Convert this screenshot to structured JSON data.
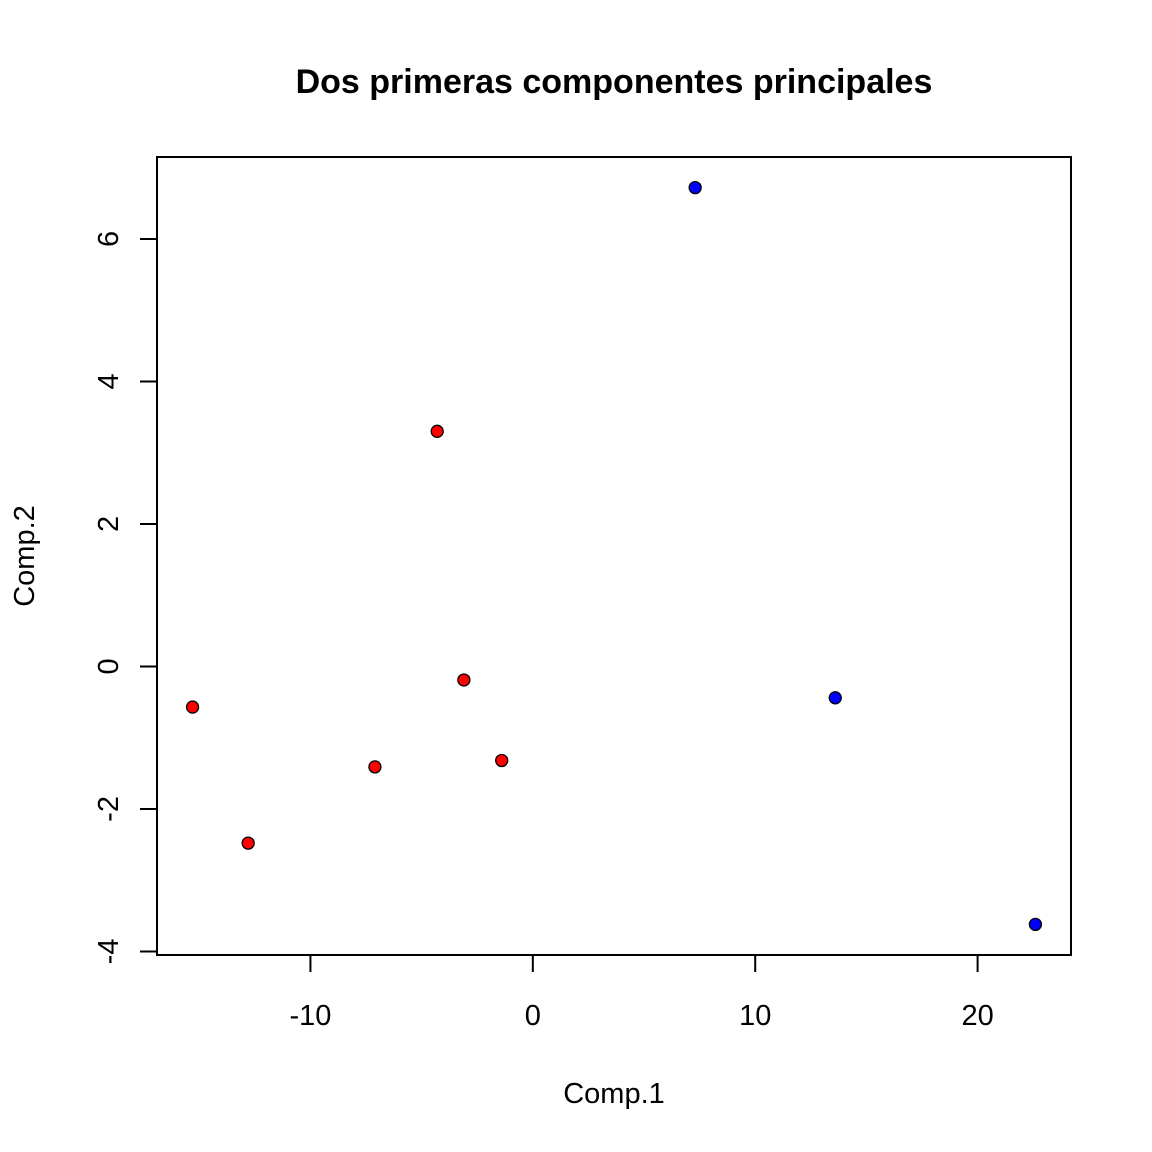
{
  "chart_data": {
    "type": "scatter",
    "title": "Dos primeras componentes principales",
    "xlabel": "Comp.1",
    "ylabel": "Comp.2",
    "xlim": [
      -16.9,
      24.2
    ],
    "ylim": [
      -4.05,
      7.15
    ],
    "grid": false,
    "legend": "none",
    "x_ticks": [
      {
        "value": -10,
        "label": "-10"
      },
      {
        "value": 0,
        "label": "0"
      },
      {
        "value": 10,
        "label": "10"
      },
      {
        "value": 20,
        "label": "20"
      }
    ],
    "y_ticks": [
      {
        "value": -4,
        "label": "-4"
      },
      {
        "value": -2,
        "label": "-2"
      },
      {
        "value": 0,
        "label": "0"
      },
      {
        "value": 2,
        "label": "2"
      },
      {
        "value": 4,
        "label": "4"
      },
      {
        "value": 6,
        "label": "6"
      }
    ],
    "series": [
      {
        "color": "#ff0000",
        "points": [
          {
            "x": -15.3,
            "y": -0.57
          },
          {
            "x": -12.8,
            "y": -2.48
          },
          {
            "x": -7.1,
            "y": -1.41
          },
          {
            "x": -4.3,
            "y": 3.3
          },
          {
            "x": -3.1,
            "y": -0.19
          },
          {
            "x": -1.4,
            "y": -1.32
          }
        ]
      },
      {
        "color": "#0000ff",
        "points": [
          {
            "x": 7.3,
            "y": 6.72
          },
          {
            "x": 13.6,
            "y": -0.44
          },
          {
            "x": 22.6,
            "y": -3.62
          }
        ]
      }
    ]
  }
}
